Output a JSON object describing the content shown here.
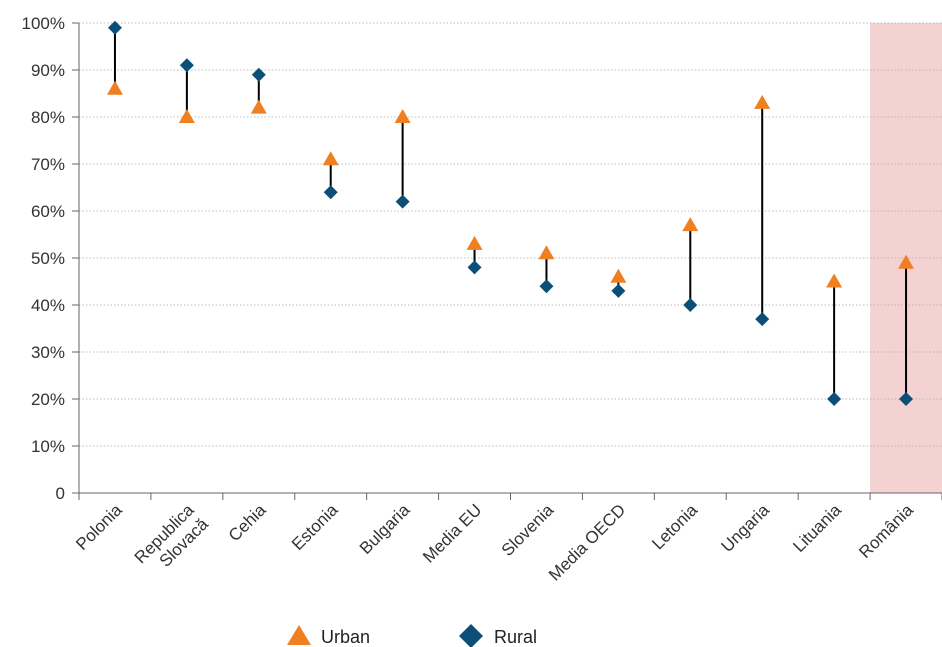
{
  "chart_data": {
    "type": "scatter",
    "title": "",
    "xlabel": "",
    "ylabel": "",
    "ylim": [
      0,
      100
    ],
    "y_ticks": [
      "0",
      "10%",
      "20%",
      "30%",
      "40%",
      "50%",
      "60%",
      "70%",
      "80%",
      "90%",
      "100%"
    ],
    "categories": [
      "Polonia",
      "Republica\nSlovacă",
      "Cehia",
      "Estonia",
      "Bulgaria",
      "Media EU",
      "Slovenia",
      "Media OECD",
      "Letonia",
      "Ungaria",
      "Lituania",
      "România"
    ],
    "series": [
      {
        "name": "Urban",
        "marker": "triangle",
        "color": "#f07f21",
        "values": [
          86,
          80,
          82,
          71,
          80,
          53,
          51,
          46,
          57,
          83,
          45,
          49
        ]
      },
      {
        "name": "Rural",
        "marker": "diamond",
        "color": "#0b4f78",
        "values": [
          99,
          91,
          89,
          64,
          62,
          48,
          44,
          43,
          40,
          37,
          20,
          20
        ]
      }
    ],
    "highlight_category": "România",
    "highlight_color": "#f5d2d2",
    "connector_color": "#000000",
    "grid": true,
    "legend_position": "bottom"
  }
}
